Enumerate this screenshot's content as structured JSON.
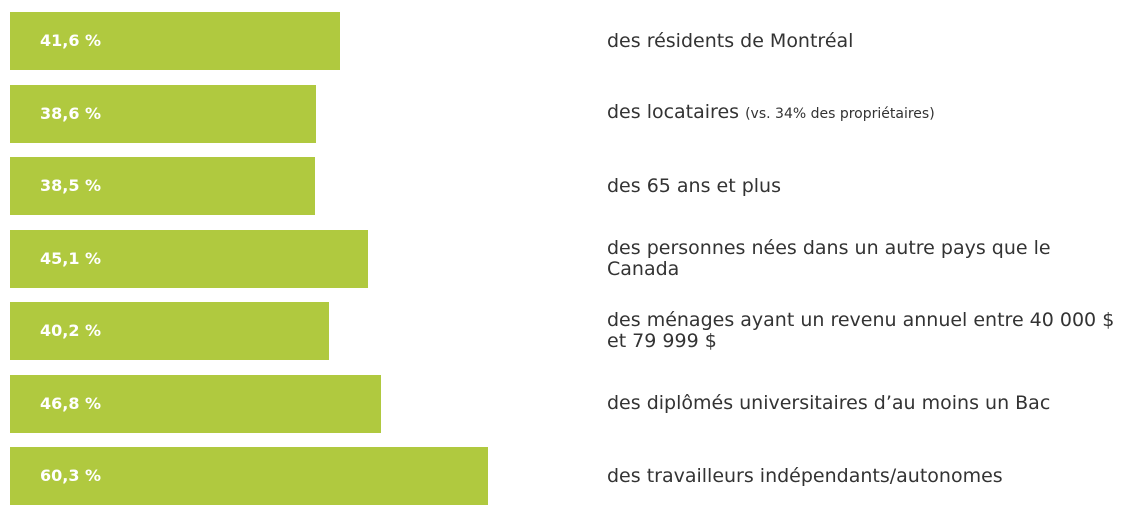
{
  "chart_data": {
    "type": "bar",
    "orientation": "horizontal",
    "color": "#b0c93f",
    "categories": [
      "des résidents de Montréal",
      "des locataires",
      "des 65 ans et plus",
      "des personnes nées dans un autre pays que le Canada",
      "des ménages ayant un revenu annuel entre 40 000 $ et 79 999 $",
      "des diplômés universitaires d’au moins un Bac",
      "des travailleurs indépendants/autonomes"
    ],
    "category_notes": [
      null,
      "(vs. 34% des propriétaires)",
      null,
      null,
      null,
      null,
      null
    ],
    "values": [
      41.6,
      38.6,
      38.5,
      45.1,
      40.2,
      46.8,
      60.3
    ],
    "value_labels": [
      "41,6 %",
      "38,6 %",
      "38,5 %",
      "45,1 %",
      "40,2 %",
      "46,8 %",
      "60,3 %"
    ]
  }
}
